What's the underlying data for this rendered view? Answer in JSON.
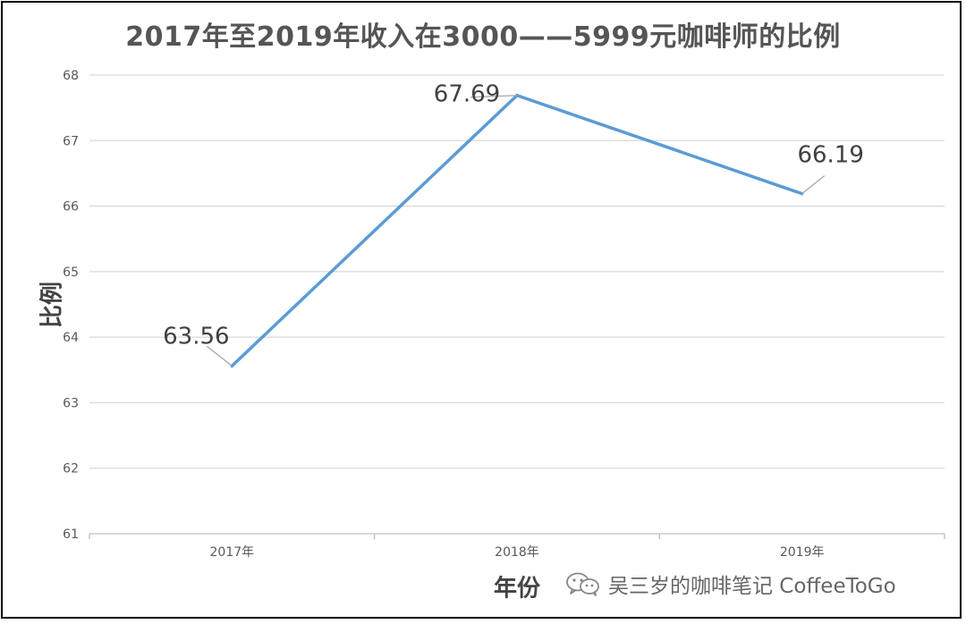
{
  "chart_data": {
    "type": "line",
    "title": "2017年至2019年收入在3000——5999元咖啡师的比例",
    "xlabel": "年份",
    "ylabel": "比例",
    "categories": [
      "2017年",
      "2018年",
      "2019年"
    ],
    "series": [
      {
        "values": [
          63.56,
          67.69,
          66.19
        ],
        "color": "#5b9bd5"
      }
    ],
    "data_labels": [
      "63.56",
      "67.69",
      "66.19"
    ],
    "ylim": [
      61,
      68
    ],
    "yticks": [
      61,
      62,
      63,
      64,
      65,
      66,
      67,
      68
    ],
    "grid": true,
    "legend": "none"
  },
  "watermark": {
    "icon": "wechat-icon",
    "text": "吴三岁的咖啡笔记 CoffeeToGo"
  },
  "colors": {
    "line": "#5b9bd5",
    "grid": "#d9d9d9",
    "text": "#595959",
    "border": "#000000"
  }
}
